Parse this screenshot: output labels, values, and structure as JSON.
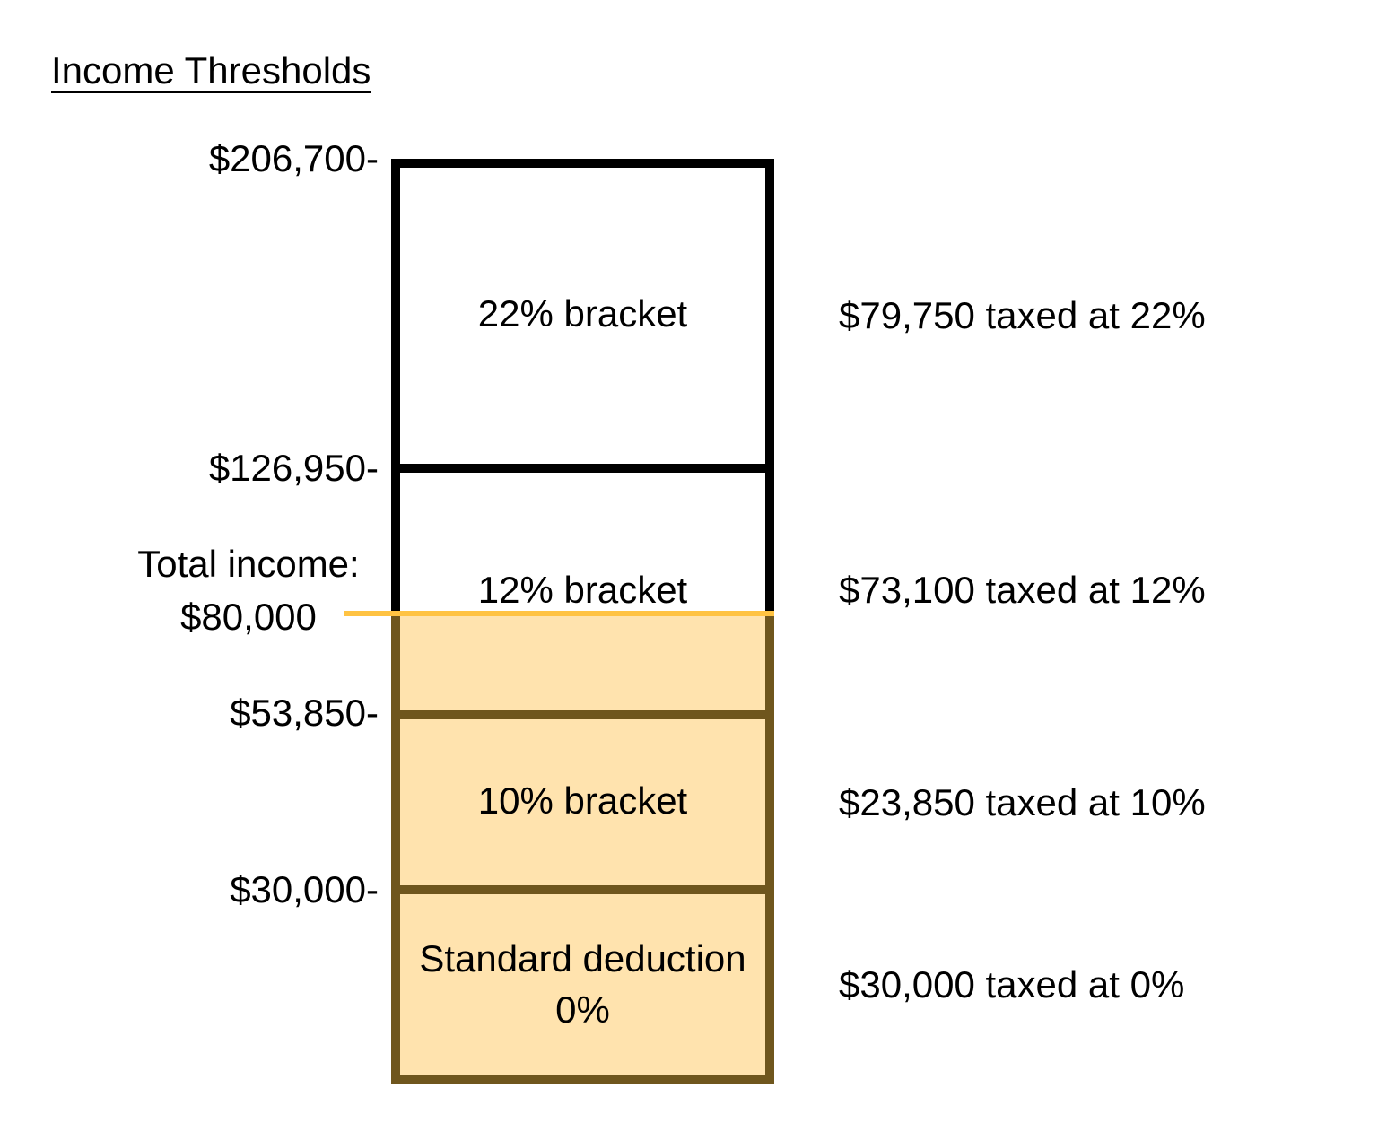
{
  "title": "Income Thresholds",
  "colors": {
    "black_border": "#000000",
    "brown_border": "#6F561D",
    "income_fill": "#FFE3AE",
    "income_line": "#FFC343"
  },
  "left_axis": {
    "label_206700": "$206,700-",
    "label_126950": "$126,950-",
    "label_53850": "$53,850-",
    "label_30000": "$30,000-"
  },
  "total_income_label": {
    "line1": "Total income:",
    "line2": "$80,000"
  },
  "brackets": {
    "b22": {
      "label": "22% bracket",
      "note": "$79,750 taxed at 22%"
    },
    "b12": {
      "label": "12% bracket",
      "note": "$73,100 taxed at 12%"
    },
    "b10": {
      "label": "10% bracket",
      "note": "$23,850 taxed at 10%"
    },
    "deduction": {
      "label_line1": "Standard deduction",
      "label_line2": "0%",
      "note": "$30,000 taxed at 0%"
    }
  },
  "chart_data": {
    "type": "bar",
    "title": "Income Thresholds",
    "orientation": "single-vertical-stacked-bar",
    "total_income": 80000,
    "y_tick_labels": [
      "$206,700-",
      "$126,950-",
      "$53,850-",
      "$30,000-"
    ],
    "segments": [
      {
        "name": "Standard deduction 0%",
        "from": 0,
        "to": 30000,
        "rate_pct": 0,
        "amount_taxed": 30000,
        "annotation": "$30,000 taxed at 0%",
        "filled": true
      },
      {
        "name": "10% bracket",
        "from": 30000,
        "to": 53850,
        "rate_pct": 10,
        "amount_taxed": 23850,
        "annotation": "$23,850 taxed at 10%",
        "filled": true
      },
      {
        "name": "12% bracket",
        "from": 53850,
        "to": 126950,
        "rate_pct": 12,
        "amount_taxed": 73100,
        "annotation": "$73,100 taxed at 12%",
        "filled_up_to": 80000
      },
      {
        "name": "22% bracket",
        "from": 126950,
        "to": 206700,
        "rate_pct": 22,
        "amount_taxed": 79750,
        "annotation": "$79,750 taxed at 22%",
        "filled": false
      }
    ],
    "fill_meaning": "orange region marks income earned up to the $80,000 total income line",
    "grid": false,
    "legend_position": "none"
  }
}
